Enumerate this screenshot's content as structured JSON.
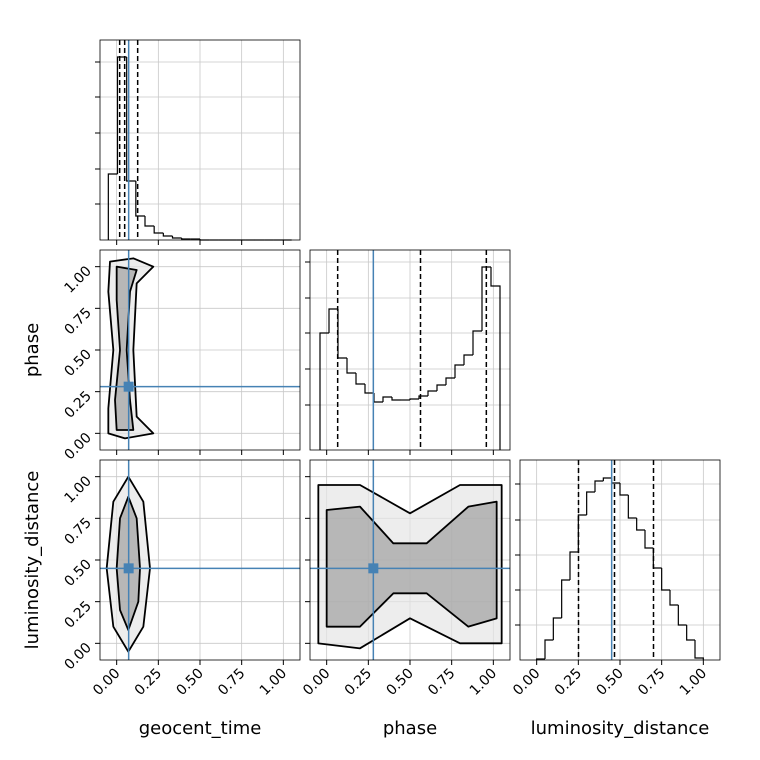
{
  "chart_data": {
    "type": "corner",
    "xlim": [
      -0.1,
      1.1
    ],
    "xticks": [
      {
        "value": 0,
        "label": "0.00"
      },
      {
        "value": 0.25,
        "label": "0.25"
      },
      {
        "value": 0.5,
        "label": "0.50"
      },
      {
        "value": 0.75,
        "label": "0.75"
      },
      {
        "value": 1,
        "label": "1.00"
      }
    ],
    "grid": true,
    "truth_color": "#4682b4",
    "parameters": [
      {
        "name": "geocent_time",
        "truth": 0.072,
        "quantiles": [
          0.018,
          0.048,
          0.126
        ],
        "hist": {
          "bins": [
            -0.05,
            0.005,
            0.06,
            0.115,
            0.17,
            0.225,
            0.28,
            0.335,
            0.39,
            0.445,
            0.5,
            0.555,
            0.61,
            0.665,
            0.72,
            0.775,
            0.83,
            0.885,
            0.94,
            0.995,
            1.05
          ],
          "values": [
            66,
            183,
            59,
            24,
            14,
            7,
            4,
            2,
            1,
            1,
            0,
            0,
            0,
            0,
            0,
            0,
            0,
            0,
            0,
            0
          ],
          "ylim": [
            0,
            200
          ],
          "yticks": [
            36,
            71,
            107,
            143,
            178
          ]
        }
      },
      {
        "name": "phase",
        "truth": 0.28,
        "quantiles": [
          0.066,
          0.563,
          0.958
        ],
        "hist": {
          "bins": [
            -0.04,
            0.014,
            0.068,
            0.122,
            0.176,
            0.23,
            0.284,
            0.338,
            0.392,
            0.446,
            0.5,
            0.554,
            0.608,
            0.662,
            0.716,
            0.77,
            0.824,
            0.878,
            0.932,
            0.986,
            1.04
          ],
          "values": [
            117,
            141,
            92,
            77,
            66,
            57,
            48,
            53,
            50,
            50,
            51,
            54,
            59,
            65,
            72,
            85,
            95,
            119,
            183,
            164
          ],
          "ylim": [
            0,
            200
          ],
          "yticks": [
            45,
            81,
            117,
            152,
            188
          ]
        }
      },
      {
        "name": "luminosity_distance",
        "truth": 0.45,
        "quantiles": [
          0.251,
          0.467,
          0.701
        ],
        "hist": {
          "bins": [
            0,
            0.05,
            0.1,
            0.15,
            0.2,
            0.25,
            0.3,
            0.35,
            0.4,
            0.45,
            0.5,
            0.55,
            0.6,
            0.65,
            0.7,
            0.75,
            0.8,
            0.85,
            0.9,
            0.95,
            1.0
          ],
          "values": [
            1,
            20,
            42,
            80,
            108,
            145,
            168,
            179,
            182,
            177,
            165,
            142,
            130,
            112,
            92,
            70,
            55,
            35,
            20,
            2
          ],
          "ylim": [
            0,
            200
          ],
          "yticks": [
            35,
            70,
            105,
            140,
            176
          ]
        }
      }
    ],
    "contours": [
      {
        "levels": [
          {
            "x": [
              -0.05,
              0.05,
              0.22,
              0.12,
              0.1,
              0.12,
              0.22,
              0.1,
              -0.04,
              -0.05,
              -0.02,
              -0.05
            ],
            "y": [
              0.0,
              -0.03,
              0.0,
              0.1,
              0.5,
              0.9,
              1.0,
              1.05,
              1.03,
              0.85,
              0.5,
              0.15
            ]
          },
          {
            "x": [
              0.0,
              0.1,
              0.08,
              0.06,
              0.08,
              0.12,
              0.0,
              0.0,
              0.02,
              -0.01
            ],
            "y": [
              0.02,
              0.02,
              0.2,
              0.5,
              0.85,
              0.98,
              1.0,
              0.8,
              0.5,
              0.2
            ]
          }
        ]
      },
      {
        "levels": [
          {
            "x": [
              0.07,
              0.16,
              0.2,
              0.16,
              0.07,
              -0.02,
              -0.06,
              -0.02
            ],
            "y": [
              -0.05,
              0.1,
              0.45,
              0.85,
              1.0,
              0.85,
              0.45,
              0.1
            ]
          },
          {
            "x": [
              0.07,
              0.13,
              0.14,
              0.12,
              0.07,
              0.02,
              0.0,
              0.02
            ],
            "y": [
              0.08,
              0.25,
              0.45,
              0.75,
              0.88,
              0.75,
              0.45,
              0.2
            ]
          }
        ]
      },
      {
        "levels": [
          {
            "x": [
              -0.05,
              0.2,
              0.5,
              0.8,
              1.05,
              1.05,
              0.8,
              0.5,
              0.2,
              -0.05
            ],
            "y": [
              0.0,
              -0.03,
              0.15,
              0.0,
              0.0,
              0.95,
              0.95,
              0.78,
              0.95,
              0.95
            ]
          },
          {
            "x": [
              0.0,
              0.2,
              0.4,
              0.6,
              0.85,
              1.02,
              1.02,
              0.85,
              0.6,
              0.4,
              0.2,
              0.0
            ],
            "y": [
              0.1,
              0.1,
              0.3,
              0.3,
              0.1,
              0.15,
              0.85,
              0.82,
              0.6,
              0.6,
              0.82,
              0.8
            ]
          }
        ]
      }
    ]
  }
}
